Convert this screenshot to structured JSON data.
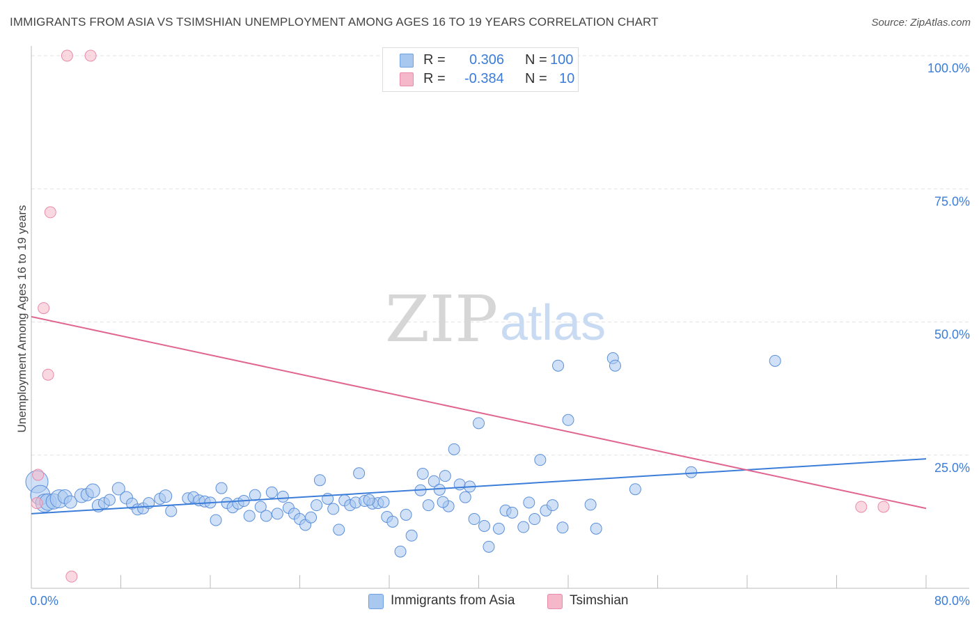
{
  "header": {
    "title": "IMMIGRANTS FROM ASIA VS TSIMSHIAN UNEMPLOYMENT AMONG AGES 16 TO 19 YEARS CORRELATION CHART",
    "source": "Source: ZipAtlas.com"
  },
  "watermark": {
    "zip": "ZIP",
    "atlas": "atlas"
  },
  "legend": {
    "rows": [
      {
        "r_label": "R =",
        "r_value": "0.306",
        "n_label": "N =",
        "n_value": "100",
        "color": "#a9c8f0"
      },
      {
        "r_label": "R =",
        "r_value": "-0.384",
        "n_label": "N =",
        "n_value": "10",
        "color": "#f5b8cb"
      }
    ]
  },
  "bottom_legend": {
    "items": [
      {
        "label": "Immigrants from Asia",
        "color": "#a9c8f0"
      },
      {
        "label": "Tsimshian",
        "color": "#f5b8cb"
      }
    ]
  },
  "chart_data": {
    "type": "scatter",
    "title": "IMMIGRANTS FROM ASIA VS TSIMSHIAN UNEMPLOYMENT AMONG AGES 16 TO 19 YEARS CORRELATION CHART",
    "xlabel": "",
    "ylabel": "Unemployment Among Ages 16 to 19 years",
    "xlim": [
      0,
      80
    ],
    "ylim": [
      0,
      100
    ],
    "x_tick_labels": [
      "0.0%",
      "80.0%"
    ],
    "y_tick_labels": [
      "100.0%",
      "75.0%",
      "50.0%",
      "25.0%"
    ],
    "y_ticks": [
      100,
      75,
      50,
      25
    ],
    "grid": true,
    "legend_position": "top-center",
    "colors": {
      "asia": "#3b7dd8",
      "asia_fill": "#a9c8f0",
      "tsimshian": "#e06591",
      "tsimshian_fill": "#f5b8cb",
      "axis_text": "#3b7dd8"
    },
    "series": [
      {
        "name": "Immigrants from Asia",
        "trend": {
          "x": [
            0,
            80
          ],
          "y": [
            14.0,
            24.3
          ]
        },
        "points": [
          [
            0.5,
            20.0,
            16
          ],
          [
            0.8,
            17.5,
            14
          ],
          [
            1.2,
            16.0,
            13
          ],
          [
            1.5,
            16.2,
            12
          ],
          [
            2.0,
            16.3,
            11
          ],
          [
            2.5,
            16.8,
            13
          ],
          [
            3.0,
            17.2,
            10
          ],
          [
            3.5,
            16.2,
            9
          ],
          [
            4.5,
            17.4,
            10
          ],
          [
            5.0,
            17.6,
            9
          ],
          [
            5.5,
            18.3,
            10
          ],
          [
            6.0,
            15.5,
            9
          ],
          [
            6.5,
            16.0,
            8
          ],
          [
            7.0,
            16.6,
            8
          ],
          [
            7.8,
            18.7,
            9
          ],
          [
            8.5,
            17.0,
            9
          ],
          [
            9.0,
            15.9,
            8
          ],
          [
            9.5,
            14.8,
            8
          ],
          [
            10.0,
            15.0,
            8
          ],
          [
            10.5,
            16.0,
            8
          ],
          [
            11.5,
            16.8,
            8
          ],
          [
            12.0,
            17.3,
            9
          ],
          [
            12.5,
            14.5,
            8
          ],
          [
            14.0,
            16.9,
            8
          ],
          [
            14.5,
            17.1,
            8
          ],
          [
            15.0,
            16.5,
            8
          ],
          [
            15.5,
            16.3,
            8
          ],
          [
            16.0,
            16.1,
            8
          ],
          [
            16.5,
            12.8,
            8
          ],
          [
            17.0,
            18.8,
            8
          ],
          [
            17.5,
            16.0,
            8
          ],
          [
            18.0,
            15.2,
            8
          ],
          [
            18.5,
            15.9,
            8
          ],
          [
            19.0,
            16.4,
            8
          ],
          [
            19.5,
            13.6,
            8
          ],
          [
            20.0,
            17.5,
            8
          ],
          [
            20.5,
            15.3,
            8
          ],
          [
            21.0,
            13.6,
            8
          ],
          [
            21.5,
            18.0,
            8
          ],
          [
            22.0,
            14.0,
            8
          ],
          [
            22.5,
            17.2,
            8
          ],
          [
            23.0,
            15.1,
            8
          ],
          [
            23.5,
            14.0,
            8
          ],
          [
            24.0,
            13.0,
            8
          ],
          [
            24.5,
            11.9,
            8
          ],
          [
            25.0,
            13.3,
            8
          ],
          [
            25.5,
            15.6,
            8
          ],
          [
            25.8,
            20.3,
            8
          ],
          [
            26.5,
            16.8,
            8
          ],
          [
            27.0,
            14.9,
            8
          ],
          [
            27.5,
            11.0,
            8
          ],
          [
            28.0,
            16.5,
            8
          ],
          [
            28.5,
            15.6,
            8
          ],
          [
            29.0,
            16.1,
            8
          ],
          [
            29.3,
            21.6,
            8
          ],
          [
            29.8,
            16.4,
            8
          ],
          [
            30.5,
            15.9,
            8
          ],
          [
            31.0,
            16.0,
            8
          ],
          [
            31.5,
            16.2,
            8
          ],
          [
            31.8,
            13.4,
            8
          ],
          [
            32.3,
            12.5,
            8
          ],
          [
            33.0,
            6.9,
            8
          ],
          [
            33.5,
            13.8,
            8
          ],
          [
            34.0,
            9.9,
            8
          ],
          [
            34.8,
            18.4,
            8
          ],
          [
            35.0,
            21.5,
            8
          ],
          [
            35.5,
            15.6,
            8
          ],
          [
            36.0,
            20.1,
            8
          ],
          [
            36.5,
            18.5,
            8
          ],
          [
            37.0,
            21.1,
            8
          ],
          [
            37.3,
            15.4,
            8
          ],
          [
            37.8,
            26.1,
            8
          ],
          [
            38.3,
            19.5,
            8
          ],
          [
            38.8,
            17.1,
            8
          ],
          [
            39.2,
            19.1,
            8
          ],
          [
            39.6,
            13.0,
            8
          ],
          [
            40.0,
            31.0,
            8
          ],
          [
            40.5,
            11.7,
            8
          ],
          [
            40.9,
            7.8,
            8
          ],
          [
            41.8,
            11.2,
            8
          ],
          [
            42.4,
            14.6,
            8
          ],
          [
            43.0,
            14.2,
            8
          ],
          [
            44.0,
            11.5,
            8
          ],
          [
            44.5,
            16.1,
            8
          ],
          [
            45.0,
            13.0,
            8
          ],
          [
            45.5,
            24.1,
            8
          ],
          [
            46.0,
            14.6,
            8
          ],
          [
            46.6,
            15.6,
            8
          ],
          [
            47.5,
            11.4,
            8
          ],
          [
            47.1,
            41.8,
            8
          ],
          [
            48.0,
            31.6,
            8
          ],
          [
            50.5,
            11.2,
            8
          ],
          [
            52.0,
            43.2,
            8
          ],
          [
            52.2,
            41.8,
            8
          ],
          [
            54.0,
            18.6,
            8
          ],
          [
            59.0,
            21.8,
            8
          ],
          [
            66.5,
            42.7,
            8
          ],
          [
            50.0,
            15.7,
            8
          ],
          [
            36.8,
            16.2,
            8
          ],
          [
            30.2,
            16.6,
            8
          ]
        ]
      },
      {
        "name": "Tsimshian",
        "trend": {
          "x": [
            0,
            80
          ],
          "y": [
            51.0,
            15.0
          ]
        },
        "points": [
          [
            0.5,
            16.0,
            8
          ],
          [
            0.6,
            21.3,
            8
          ],
          [
            1.1,
            52.6,
            8
          ],
          [
            1.5,
            40.1,
            8
          ],
          [
            1.7,
            70.6,
            8
          ],
          [
            3.2,
            100.0,
            8
          ],
          [
            3.6,
            2.2,
            8
          ],
          [
            5.3,
            100.0,
            8
          ],
          [
            74.2,
            15.3,
            8
          ],
          [
            76.2,
            15.3,
            8
          ]
        ]
      }
    ]
  }
}
